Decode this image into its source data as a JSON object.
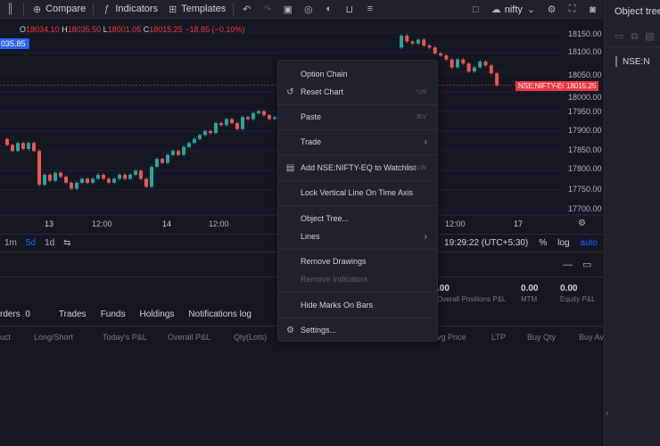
{
  "toolbar": {
    "compare_label": "Compare",
    "indicators_label": "Indicators",
    "templates_label": "Templates",
    "symbol_search_value": "nifty"
  },
  "legend": {
    "o_label": "O",
    "o_value": "18034.10",
    "h_label": "H",
    "h_value": "18035.50",
    "l_label": "L",
    "l_value": "18001.05",
    "c_label": "C",
    "c_value": "18015.25",
    "change": "−18.85 (−0.10%)"
  },
  "badge_value": "035.85",
  "price_axis": [
    "18150.00",
    "18100.00",
    "18050.00",
    "18000.00",
    "17950.00",
    "17900.00",
    "17850.00",
    "17800.00",
    "17750.00",
    "17700.00"
  ],
  "time_axis": [
    "13",
    "12:00",
    "14",
    "12:00",
    "12:00",
    "17"
  ],
  "last_price": {
    "symbol_label": "NSE:NIFTY-EQ",
    "price_label": "18015.25"
  },
  "bottombar": {
    "timeframes": [
      "1m",
      "5d",
      "1d"
    ],
    "time_display": "19:29:22 (UTC+5:30)",
    "percent_label": "%",
    "log_label": "log",
    "auto_label": "auto"
  },
  "stats": [
    {
      "value": ".00",
      "label": "Overall Positions P&L"
    },
    {
      "value": "0.00",
      "label": "MTM"
    },
    {
      "value": "0.00",
      "label": "Equity P&L"
    }
  ],
  "tabs": [
    {
      "label": "rders",
      "count": "0"
    },
    {
      "label": "Trades"
    },
    {
      "label": "Funds"
    },
    {
      "label": "Holdings"
    },
    {
      "label": "Notifications log"
    }
  ],
  "columns": [
    "uct",
    "Long/Short",
    "Today's P&L",
    "Overall P&L",
    "Qty(Lots)",
    "vg Price",
    "LTP",
    "Buy Qty",
    "Buy Av"
  ],
  "right_panel": {
    "title": "Object tree",
    "symbol": "NSE:N"
  },
  "context_menu": {
    "items": [
      {
        "label": "Option Chain",
        "shortcut": ""
      },
      {
        "label": "Reset Chart",
        "shortcut": "⌥R"
      },
      {
        "label": "Paste",
        "shortcut": "⌘V"
      },
      {
        "label": "Trade",
        "shortcut": ""
      },
      {
        "label": "Add NSE:NIFTY-EQ to Watchlist",
        "shortcut": "⌥W"
      },
      {
        "label": "Lock Vertical Line On Time Axis",
        "shortcut": ""
      },
      {
        "label": "Object Tree...",
        "shortcut": ""
      },
      {
        "label": "Lines",
        "shortcut": ""
      },
      {
        "label": "Remove Drawings",
        "shortcut": ""
      },
      {
        "label": "Remove Indicators",
        "shortcut": ""
      },
      {
        "label": "Hide Marks On Bars",
        "shortcut": ""
      },
      {
        "label": "Settings...",
        "shortcut": ""
      }
    ]
  },
  "chart_data": {
    "type": "candlestick",
    "symbol": "NSE:NIFTY-EQ",
    "ylim": [
      17680,
      18160
    ],
    "up_color": "#26a69a",
    "down_color": "#ef5350",
    "series": [
      {
        "o": 17880,
        "c": 17865
      },
      {
        "o": 17865,
        "c": 17850
      },
      {
        "o": 17850,
        "c": 17870
      },
      {
        "o": 17870,
        "c": 17855
      },
      {
        "o": 17855,
        "c": 17870
      },
      {
        "o": 17870,
        "c": 17850
      },
      {
        "o": 17850,
        "c": 17765
      },
      {
        "o": 17765,
        "c": 17790
      },
      {
        "o": 17790,
        "c": 17775
      },
      {
        "o": 17775,
        "c": 17795
      },
      {
        "o": 17795,
        "c": 17785
      },
      {
        "o": 17785,
        "c": 17770
      },
      {
        "o": 17770,
        "c": 17755
      },
      {
        "o": 17755,
        "c": 17770
      },
      {
        "o": 17770,
        "c": 17780
      },
      {
        "o": 17780,
        "c": 17770
      },
      {
        "o": 17770,
        "c": 17780
      },
      {
        "o": 17780,
        "c": 17790
      },
      {
        "o": 17790,
        "c": 17780
      },
      {
        "o": 17780,
        "c": 17770
      },
      {
        "o": 17770,
        "c": 17780
      },
      {
        "o": 17780,
        "c": 17790
      },
      {
        "o": 17790,
        "c": 17780
      },
      {
        "o": 17780,
        "c": 17790
      },
      {
        "o": 17790,
        "c": 17800
      },
      {
        "o": 17800,
        "c": 17780
      },
      {
        "o": 17780,
        "c": 17760
      },
      {
        "o": 17760,
        "c": 17810
      },
      {
        "o": 17810,
        "c": 17830
      },
      {
        "o": 17830,
        "c": 17820
      },
      {
        "o": 17820,
        "c": 17840
      },
      {
        "o": 17840,
        "c": 17850
      },
      {
        "o": 17850,
        "c": 17840
      },
      {
        "o": 17840,
        "c": 17860
      },
      {
        "o": 17860,
        "c": 17870
      },
      {
        "o": 17870,
        "c": 17880
      },
      {
        "o": 17880,
        "c": 17890
      },
      {
        "o": 17890,
        "c": 17900
      },
      {
        "o": 17900,
        "c": 17895
      },
      {
        "o": 17895,
        "c": 17920
      },
      {
        "o": 17920,
        "c": 17915
      },
      {
        "o": 17915,
        "c": 17930
      },
      {
        "o": 17930,
        "c": 17920
      },
      {
        "o": 17920,
        "c": 17905
      },
      {
        "o": 17905,
        "c": 17935
      },
      {
        "o": 17935,
        "c": 17930
      },
      {
        "o": 17930,
        "c": 17945
      },
      {
        "o": 17945,
        "c": 17950
      },
      {
        "o": 17950,
        "c": 17940
      },
      {
        "o": 17940,
        "c": 17930
      },
      {
        "o": 17930,
        "c": 17935
      },
      {
        "o": 18110,
        "c": 18140
      },
      {
        "o": 18140,
        "c": 18125
      },
      {
        "o": 18125,
        "c": 18120
      },
      {
        "o": 18120,
        "c": 18130
      },
      {
        "o": 18130,
        "c": 18115
      },
      {
        "o": 18115,
        "c": 18110
      },
      {
        "o": 18110,
        "c": 18095
      },
      {
        "o": 18095,
        "c": 18090
      },
      {
        "o": 18090,
        "c": 18080
      },
      {
        "o": 18080,
        "c": 18060
      },
      {
        "o": 18060,
        "c": 18080
      },
      {
        "o": 18080,
        "c": 18070
      },
      {
        "o": 18070,
        "c": 18050
      },
      {
        "o": 18050,
        "c": 18060
      },
      {
        "o": 18060,
        "c": 18075
      },
      {
        "o": 18075,
        "c": 18065
      },
      {
        "o": 18065,
        "c": 18045
      },
      {
        "o": 18045,
        "c": 18015
      }
    ]
  }
}
